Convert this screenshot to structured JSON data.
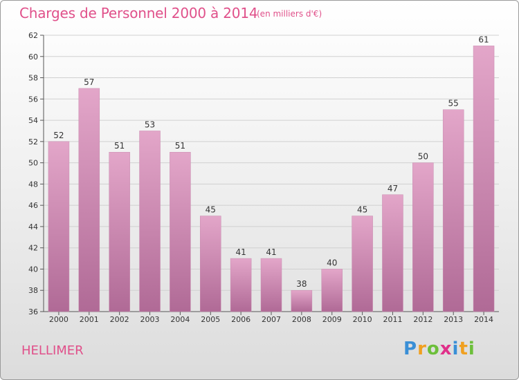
{
  "header": {
    "title": "Charges de Personnel 2000 à 2014",
    "subtitle": "(en milliers d'€)"
  },
  "commune": "HELLIMER",
  "logo": {
    "letters": [
      "P",
      "r",
      "o",
      "x",
      "i",
      "t",
      "i"
    ],
    "colors": [
      "#3a8fd6",
      "#f0a020",
      "#6cbf3a",
      "#e0308a",
      "#3a8fd6",
      "#f0a020",
      "#6cbf3a"
    ]
  },
  "chart_data": {
    "type": "bar",
    "title": "Charges de Personnel 2000 à 2014",
    "subtitle": "(en milliers d'€)",
    "xlabel": "",
    "ylabel": "",
    "categories": [
      "2000",
      "2001",
      "2002",
      "2003",
      "2004",
      "2005",
      "2006",
      "2007",
      "2008",
      "2009",
      "2010",
      "2011",
      "2012",
      "2013",
      "2014"
    ],
    "values": [
      52,
      57,
      51,
      53,
      51,
      45,
      41,
      41,
      38,
      40,
      45,
      47,
      50,
      55,
      61
    ],
    "ylim": [
      36,
      62
    ],
    "yticks": [
      36,
      38,
      40,
      42,
      44,
      46,
      48,
      50,
      52,
      54,
      56,
      58,
      60,
      62
    ],
    "grid": "horizontal",
    "bar_color_top": "#e3a6c9",
    "bar_color_bottom": "#b06a96"
  }
}
